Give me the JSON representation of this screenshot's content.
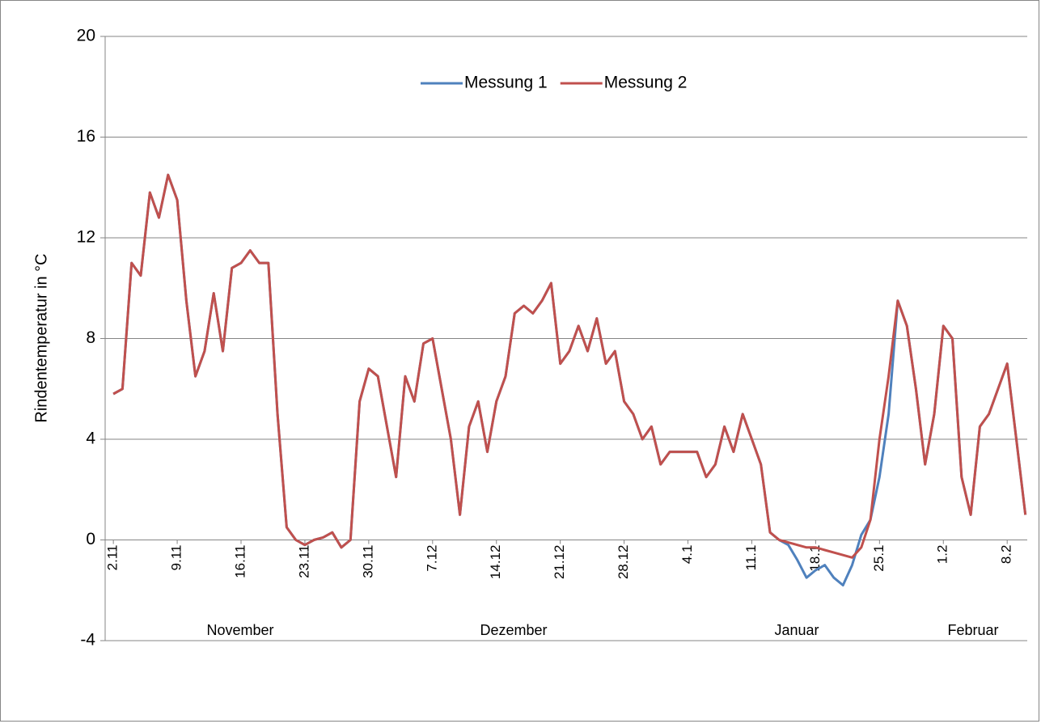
{
  "chart_data": {
    "type": "line",
    "y_label": "Rindentemperatur in °C",
    "x": [
      0,
      1,
      2,
      3,
      4,
      5,
      6,
      7,
      8,
      9,
      10,
      11,
      12,
      13,
      14,
      15,
      16,
      17,
      18,
      19,
      20,
      21,
      22,
      23,
      24,
      25,
      26,
      27,
      28,
      29,
      30,
      31,
      32,
      33,
      34,
      35,
      36,
      37,
      38,
      39,
      40,
      41,
      42,
      43,
      44,
      45,
      46,
      47,
      48,
      49,
      50,
      51,
      52,
      53,
      54,
      55,
      56,
      57,
      58,
      59,
      60,
      61,
      62,
      63,
      64,
      65,
      66,
      67,
      68,
      69,
      70,
      71,
      72,
      73,
      74,
      75,
      76,
      77,
      78,
      79,
      80,
      81,
      82,
      83,
      84,
      85,
      86,
      87,
      88,
      89,
      90,
      91,
      92,
      93,
      94,
      95,
      96,
      97,
      98,
      99,
      100
    ],
    "series": [
      {
        "name": "Messung 1",
        "color": "#4f81bd",
        "values": [
          5.8,
          6,
          11,
          10.5,
          13.8,
          12.8,
          14.5,
          13.5,
          9.5,
          6.5,
          7.5,
          9.8,
          7.5,
          10.8,
          11,
          11.5,
          11,
          11,
          5,
          0.5,
          0,
          -0.2,
          0,
          0.1,
          0.3,
          -0.3,
          0,
          5.5,
          6.8,
          6.5,
          4.5,
          2.5,
          6.5,
          5.5,
          7.8,
          8,
          6,
          4,
          1,
          4.5,
          5.5,
          3.5,
          5.5,
          6.5,
          9,
          9.3,
          9,
          9.5,
          10.2,
          7,
          7.5,
          8.5,
          7.5,
          8.8,
          7,
          7.5,
          5.5,
          5,
          4,
          4.5,
          3,
          3.5,
          3.5,
          3.5,
          3.5,
          2.5,
          3,
          4.5,
          3.5,
          5,
          4,
          3,
          0.3,
          0,
          -0.2,
          -0.8,
          -1.5,
          -1.2,
          -1,
          -1.5,
          -1.8,
          -1,
          0.2,
          0.8,
          2.5,
          5,
          9.5,
          8.5,
          6,
          3,
          5,
          8.5,
          8,
          2.5,
          1,
          4.5,
          5,
          6,
          7,
          4,
          1
        ]
      },
      {
        "name": "Messung 2",
        "color": "#c0504d",
        "values": [
          5.8,
          6,
          11,
          10.5,
          13.8,
          12.8,
          14.5,
          13.5,
          9.5,
          6.5,
          7.5,
          9.8,
          7.5,
          10.8,
          11,
          11.5,
          11,
          11,
          5,
          0.5,
          0,
          -0.2,
          0,
          0.1,
          0.3,
          -0.3,
          0,
          5.5,
          6.8,
          6.5,
          4.5,
          2.5,
          6.5,
          5.5,
          7.8,
          8,
          6,
          4,
          1,
          4.5,
          5.5,
          3.5,
          5.5,
          6.5,
          9,
          9.3,
          9,
          9.5,
          10.2,
          7,
          7.5,
          8.5,
          7.5,
          8.8,
          7,
          7.5,
          5.5,
          5,
          4,
          4.5,
          3,
          3.5,
          3.5,
          3.5,
          3.5,
          2.5,
          3,
          4.5,
          3.5,
          5,
          4,
          3,
          0.3,
          0,
          -0.1,
          -0.2,
          -0.3,
          -0.3,
          -0.4,
          -0.5,
          -0.6,
          -0.7,
          -0.3,
          0.8,
          4,
          6.5,
          9.5,
          8.5,
          6,
          3,
          5,
          8.5,
          8,
          2.5,
          1,
          4.5,
          5,
          6,
          7,
          4,
          1
        ]
      }
    ],
    "xlim": [
      -0.9,
      100.2
    ],
    "xticks": [
      {
        "value": 0,
        "label": "2.11"
      },
      {
        "value": 7,
        "label": "9.11"
      },
      {
        "value": 14,
        "label": "16.11"
      },
      {
        "value": 21,
        "label": "23.11"
      },
      {
        "value": 28,
        "label": "30.11"
      },
      {
        "value": 35,
        "label": "7.12"
      },
      {
        "value": 42,
        "label": "14.12"
      },
      {
        "value": 49,
        "label": "21.12"
      },
      {
        "value": 56,
        "label": "28.12"
      },
      {
        "value": 63,
        "label": "4.1"
      },
      {
        "value": 70,
        "label": "11.1"
      },
      {
        "value": 77,
        "label": "18.1"
      },
      {
        "value": 84,
        "label": "25.1"
      },
      {
        "value": 91,
        "label": "1.2"
      },
      {
        "value": 98,
        "label": "8.2"
      }
    ],
    "x_groups": [
      "November",
      "Dezember",
      "Januar",
      "Februar"
    ],
    "ylim": [
      -4,
      20
    ],
    "yticks": [
      -4,
      0,
      4,
      8,
      12,
      16,
      20
    ],
    "grid": true,
    "legend": "top"
  }
}
